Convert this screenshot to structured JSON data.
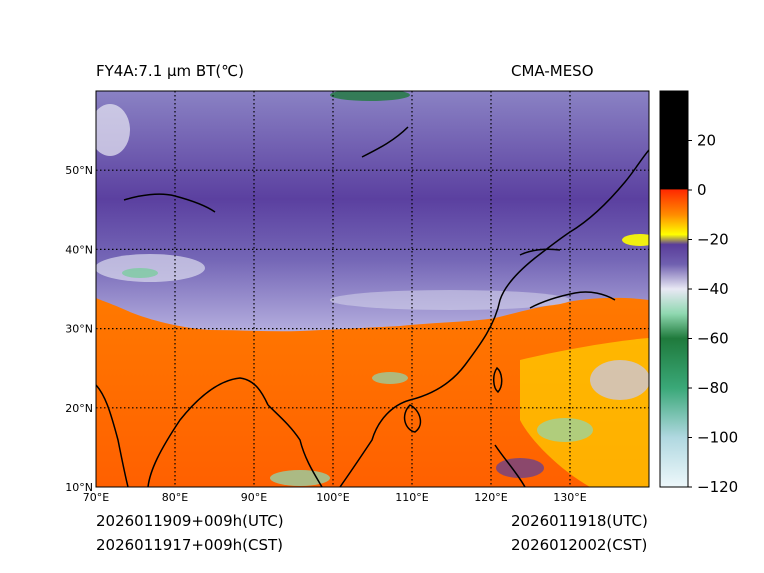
{
  "header": {
    "title_left": "FY4A:7.1 µm BT(℃)",
    "title_right": "CMA-MESO"
  },
  "footer": {
    "left_line1": "2026011909+009h(UTC)",
    "left_line2": "2026011917+009h(CST)",
    "right_line1": "2026011918(UTC)",
    "right_line2": "2026012002(CST)"
  },
  "map": {
    "lon_range": [
      70,
      140
    ],
    "lat_range": [
      10,
      60
    ],
    "lon_ticks": [
      {
        "value": 70,
        "label": "70°E"
      },
      {
        "value": 80,
        "label": "80°E"
      },
      {
        "value": 90,
        "label": "90°E"
      },
      {
        "value": 100,
        "label": "100°E"
      },
      {
        "value": 110,
        "label": "110°E"
      },
      {
        "value": 120,
        "label": "120°E"
      },
      {
        "value": 130,
        "label": "130°E"
      }
    ],
    "lat_ticks": [
      {
        "value": 10,
        "label": "10°N"
      },
      {
        "value": 20,
        "label": "20°N"
      },
      {
        "value": 30,
        "label": "30°N"
      },
      {
        "value": 40,
        "label": "40°N"
      },
      {
        "value": 50,
        "label": "50°N"
      }
    ]
  },
  "colorbar": {
    "range": [
      -120,
      40
    ],
    "ticks": [
      20,
      0,
      -20,
      -40,
      -60,
      -80,
      -100,
      -120
    ],
    "tick_labels": [
      "20",
      "0",
      "−20",
      "−40",
      "−60",
      "−80",
      "−100",
      "−120"
    ],
    "stops": [
      {
        "value": 40,
        "color": "#000000"
      },
      {
        "value": 0.5,
        "color": "#000000"
      },
      {
        "value": 0,
        "color": "#ff2a00"
      },
      {
        "value": -10,
        "color": "#ff8c00"
      },
      {
        "value": -18,
        "color": "#ffff00"
      },
      {
        "value": -22,
        "color": "#5a3d9a"
      },
      {
        "value": -30,
        "color": "#7060b0"
      },
      {
        "value": -40,
        "color": "#e8e8f4"
      },
      {
        "value": -50,
        "color": "#8fd8b0"
      },
      {
        "value": -60,
        "color": "#1f7a3c"
      },
      {
        "value": -80,
        "color": "#3aa878"
      },
      {
        "value": -100,
        "color": "#b0d8e0"
      },
      {
        "value": -120,
        "color": "#eef8fb"
      }
    ]
  }
}
